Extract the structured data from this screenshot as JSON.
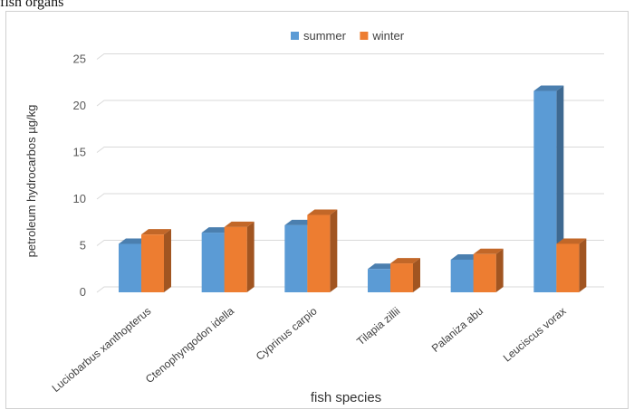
{
  "caption": "fish organs",
  "chart_data": {
    "type": "bar",
    "style": "3d-clustered",
    "categories": [
      "Luciobarbus xanthopterus",
      "Ctenophyngodon idella",
      "Cyprinus carpio",
      "Tilapia zillii",
      "Palaniza abu",
      "Leuciscus vorax"
    ],
    "series": [
      {
        "name": "summer",
        "color": "#5b9bd5",
        "values": [
          5.2,
          6.4,
          7.2,
          2.5,
          3.5,
          21.6
        ]
      },
      {
        "name": "winter",
        "color": "#ed7d31",
        "values": [
          6.2,
          7.0,
          8.3,
          3.1,
          4.1,
          5.2
        ]
      }
    ],
    "ylabel": "petroleum hydrocarbos µg/kg",
    "xlabel": "fish species",
    "ylim": [
      0,
      25
    ],
    "yticks": [
      0,
      5,
      10,
      15,
      20,
      25
    ],
    "grid": true,
    "legend_position": "top-center"
  }
}
